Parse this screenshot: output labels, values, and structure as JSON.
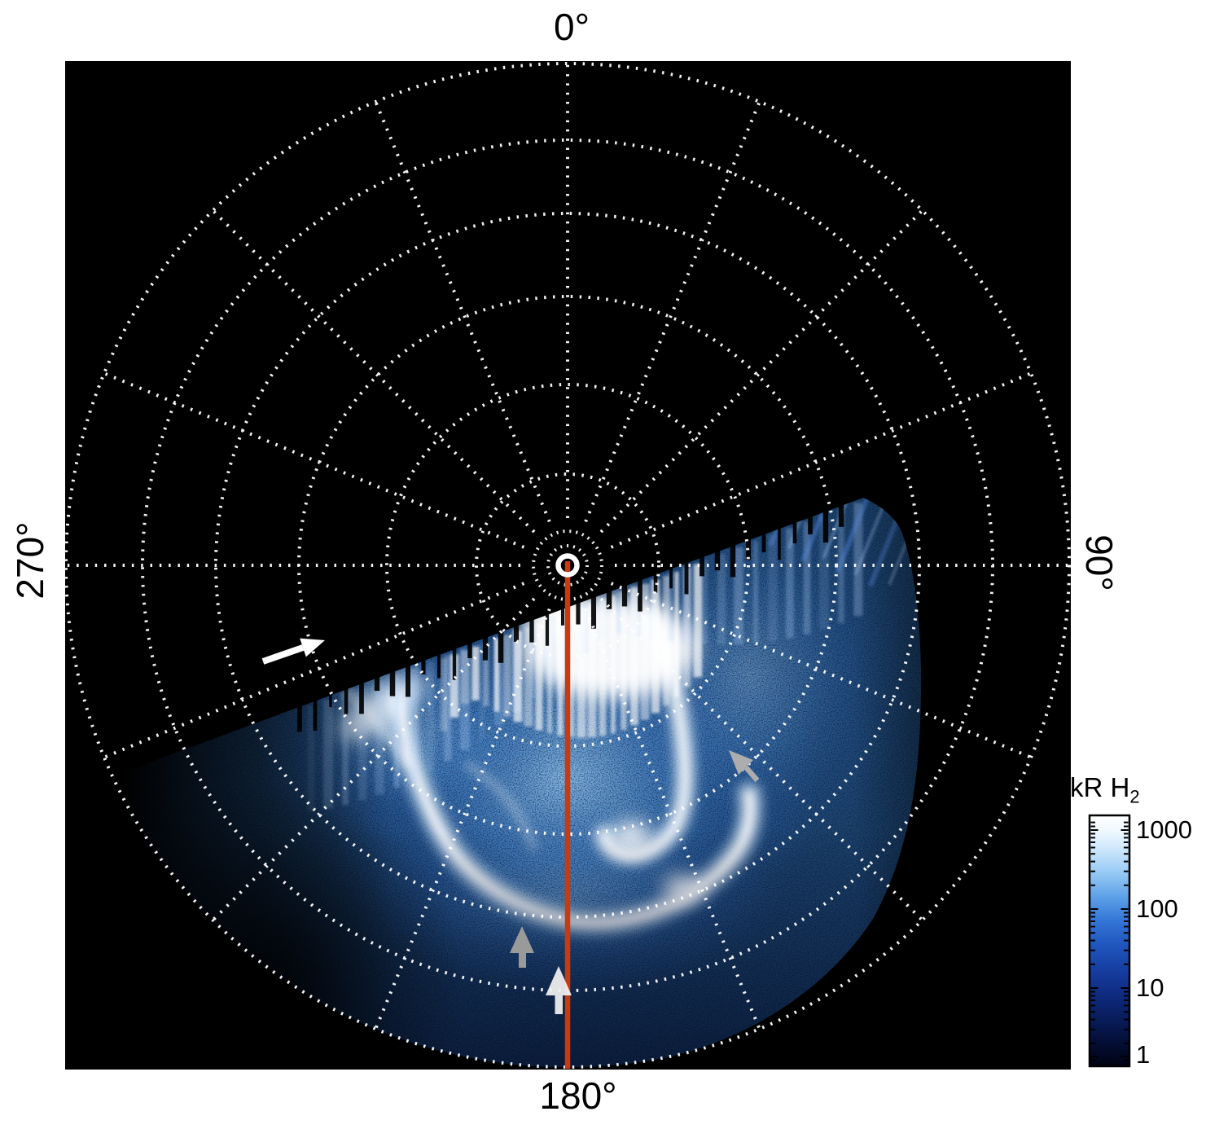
{
  "labels": {
    "top": "0°",
    "right": "90°",
    "bottom": "180°",
    "left": "270°"
  },
  "colorbar": {
    "title_main": "kR H",
    "title_sub": "2",
    "ticks": [
      "1000",
      "100",
      "10",
      "1"
    ]
  },
  "colors": {
    "plot_background": "#000000",
    "page_background": "#ffffff",
    "grid": "#ffffff",
    "meridian_line_180": "#c93a0e",
    "pole_ring": "#ffffff",
    "arrow_white": "#ffffff",
    "arrow_gray": "#adadad"
  },
  "chart_data": {
    "type": "heatmap",
    "subtype": "polar_auroral_image",
    "angular_axis": {
      "tick_labels": [
        "0°",
        "90°",
        "180°",
        "270°"
      ],
      "top_label": "0°",
      "right_label": "90°",
      "bottom_label": "180°",
      "left_label": "270°"
    },
    "grid": {
      "style": "dotted",
      "color": "white",
      "ring_count": 8,
      "meridian_step_deg": 22.5,
      "pole_marker": "white ring at center"
    },
    "colorbar": {
      "label": "kR H2",
      "scale": "log",
      "range": [
        1,
        1000
      ],
      "tick_values": [
        1,
        10,
        100,
        1000
      ],
      "colormap": [
        "#010312",
        "#081b58",
        "#163da0",
        "#3376d6",
        "#9ccdf6",
        "#ffffff"
      ]
    },
    "image_content": {
      "description": "Blue/white auroral emission wedge covering the lower portion of the polar grid; upper region has no data (black). Bright white auroral oval arc and patches over diffuse speckled blue emission; jagged vertical-streak data edge slanting down from upper right to lower left.",
      "data_edge_tilt_deg": -20,
      "features": [
        "bright patch just below data edge near center",
        "main bright arc sweeping from upper left down through bottom center and up to the right",
        "hook-shaped bright arc on dusk side",
        "diffuse speckled blue background emission"
      ]
    },
    "annotations": [
      {
        "id": "meridian-line-180",
        "type": "line",
        "color": "#c93a0e",
        "description": "solid red-orange line from pole to 180° edge"
      },
      {
        "id": "white-arrow-upper-left",
        "type": "arrow",
        "color": "#ffffff",
        "direction": "pointing right-up along data edge, upper-left quadrant"
      },
      {
        "id": "gray-arrow-right",
        "type": "arrow",
        "color": "#adadad",
        "direction": "pointing upper-left, right mid-field"
      },
      {
        "id": "gray-arrow-bottom",
        "type": "arrow",
        "color": "#9a9a9a",
        "direction": "pointing up, left of red line near bottom"
      },
      {
        "id": "white-arrow-bottom",
        "type": "arrow",
        "color": "#f2f2f2",
        "direction": "pointing up, on red line near bottom"
      }
    ]
  }
}
